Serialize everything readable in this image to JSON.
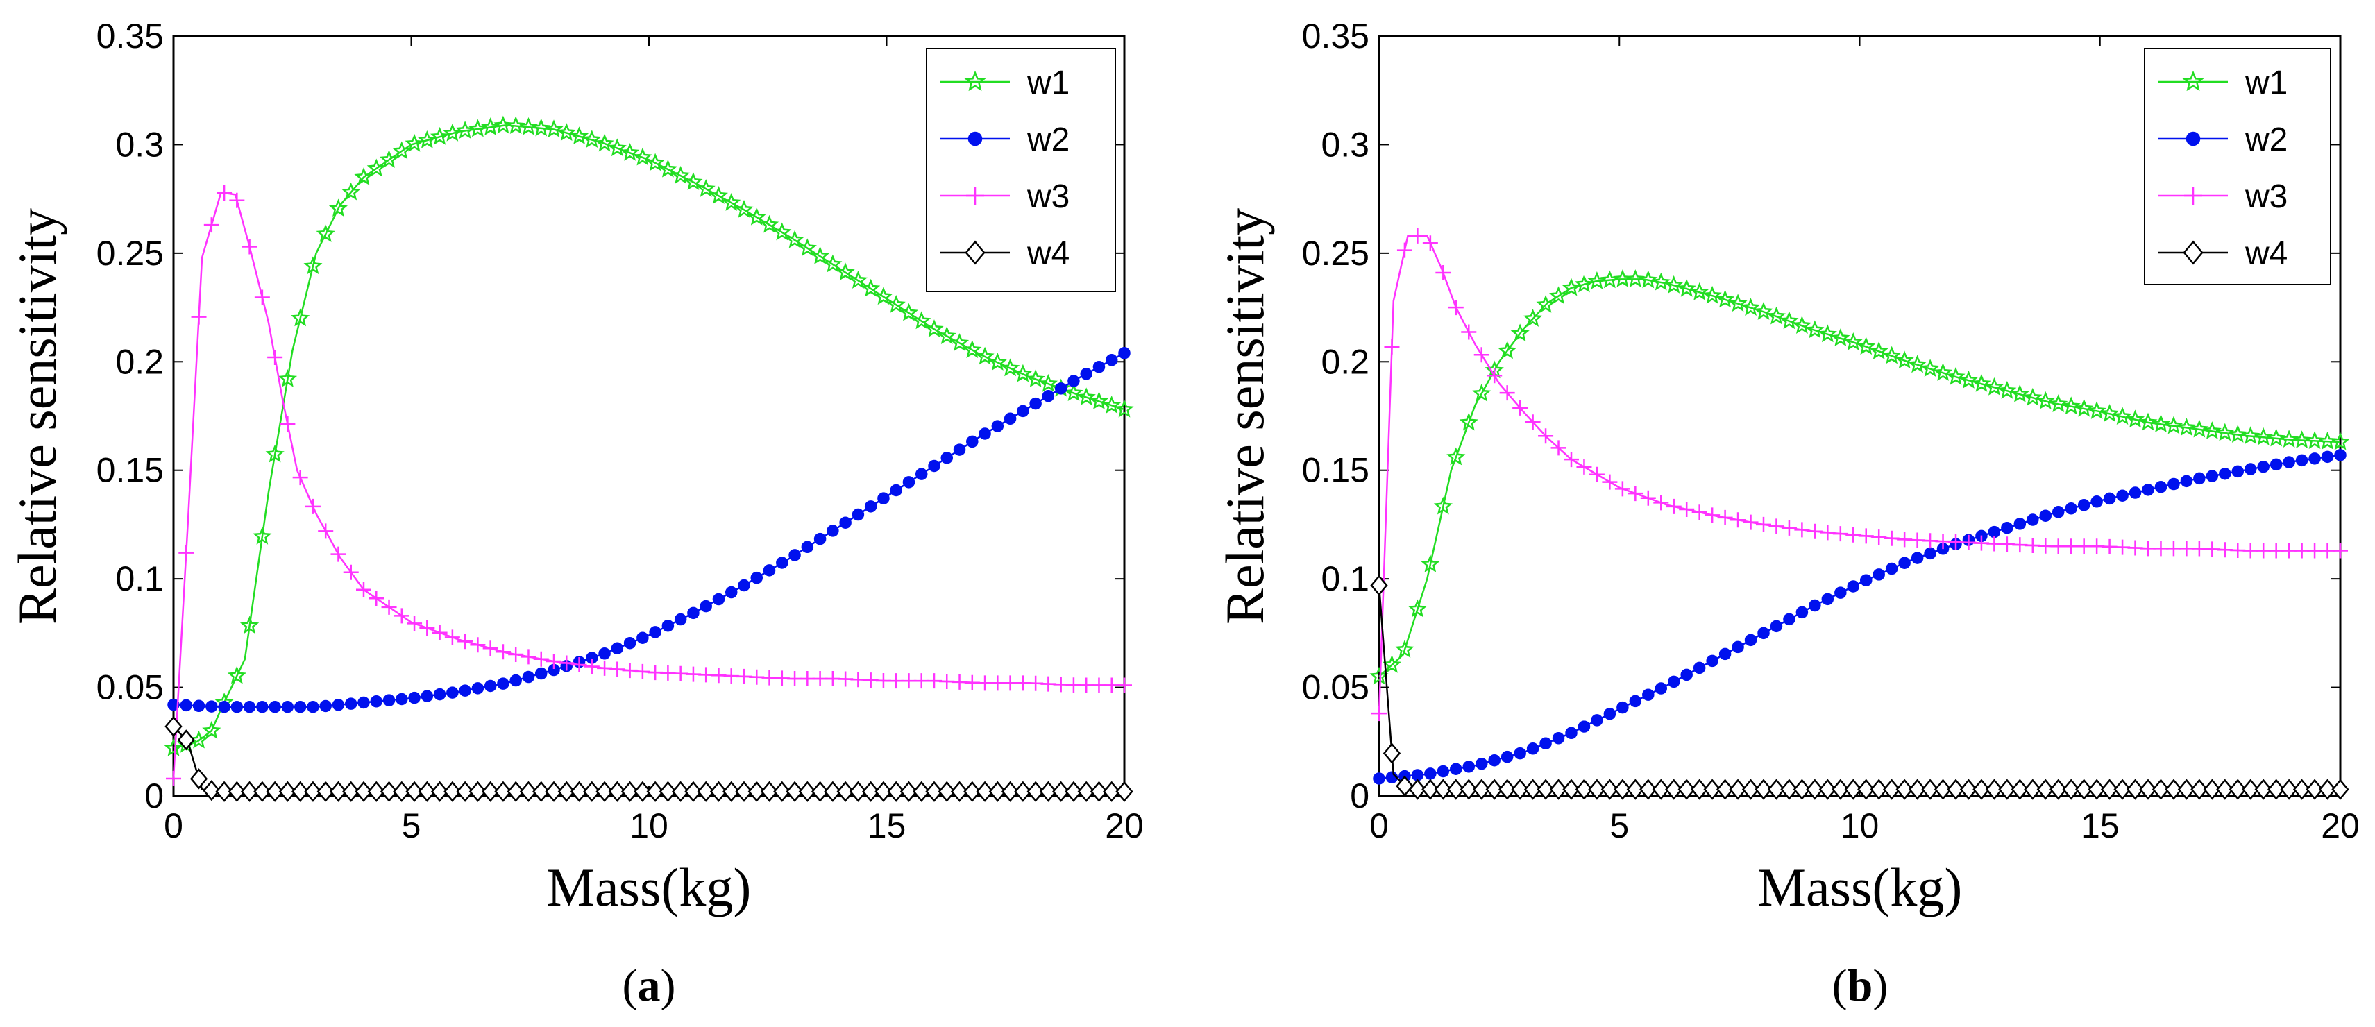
{
  "chart_data": [
    {
      "type": "line",
      "caption": "a",
      "xlabel": "Mass(kg)",
      "ylabel": "Relative sensitivity",
      "xlim": [
        0,
        20
      ],
      "ylim": [
        0,
        0.35
      ],
      "xticks": [
        "0",
        "5",
        "10",
        "15",
        "20"
      ],
      "yticks": [
        "0",
        "0.05",
        "0.1",
        "0.15",
        "0.2",
        "0.25",
        "0.3",
        "0.35"
      ],
      "legend_position": "top-right",
      "series": [
        {
          "name": "w1",
          "color": "#22dd22",
          "marker": "star",
          "x": [
            0,
            0.5,
            0.8,
            1,
            1.5,
            2,
            2.5,
            3,
            3.5,
            4,
            5,
            6,
            7,
            8,
            9,
            10,
            11,
            12,
            13,
            14,
            15,
            16,
            17,
            18,
            19,
            20
          ],
          "y": [
            0.022,
            0.025,
            0.03,
            0.04,
            0.063,
            0.14,
            0.205,
            0.25,
            0.272,
            0.285,
            0.3,
            0.306,
            0.309,
            0.307,
            0.301,
            0.293,
            0.282,
            0.27,
            0.257,
            0.243,
            0.229,
            0.215,
            0.203,
            0.193,
            0.185,
            0.178
          ]
        },
        {
          "name": "w2",
          "color": "#0011ee",
          "marker": "dot",
          "x": [
            0,
            1,
            2,
            3,
            4,
            5,
            6,
            7,
            8,
            9,
            10,
            11,
            12,
            13,
            14,
            15,
            16,
            17,
            18,
            19,
            20
          ],
          "y": [
            0.042,
            0.041,
            0.041,
            0.041,
            0.043,
            0.045,
            0.048,
            0.052,
            0.058,
            0.065,
            0.074,
            0.085,
            0.097,
            0.11,
            0.124,
            0.138,
            0.152,
            0.166,
            0.179,
            0.192,
            0.204
          ]
        },
        {
          "name": "w3",
          "color": "#ff33ff",
          "marker": "plus",
          "x": [
            0,
            0.3,
            0.6,
            1,
            1.3,
            1.6,
            2,
            2.3,
            2.6,
            3,
            3.5,
            4,
            5,
            6,
            7,
            8,
            9,
            10,
            11,
            12,
            13,
            14,
            15,
            16,
            17,
            18,
            19,
            20
          ],
          "y": [
            0.008,
            0.125,
            0.248,
            0.278,
            0.277,
            0.253,
            0.218,
            0.182,
            0.15,
            0.13,
            0.11,
            0.095,
            0.08,
            0.072,
            0.066,
            0.062,
            0.059,
            0.057,
            0.056,
            0.055,
            0.054,
            0.054,
            0.053,
            0.053,
            0.052,
            0.052,
            0.051,
            0.051
          ]
        },
        {
          "name": "w4",
          "color": "#000000",
          "marker": "diamond",
          "x": [
            0,
            0.3,
            0.6,
            1,
            2,
            3,
            4,
            5,
            6,
            7,
            8,
            9,
            10,
            11,
            12,
            13,
            14,
            15,
            16,
            17,
            18,
            19,
            20
          ],
          "y": [
            0.032,
            0.025,
            0.003,
            0.002,
            0.002,
            0.002,
            0.002,
            0.002,
            0.002,
            0.002,
            0.002,
            0.002,
            0.002,
            0.002,
            0.002,
            0.002,
            0.002,
            0.002,
            0.002,
            0.002,
            0.002,
            0.002,
            0.002
          ]
        }
      ]
    },
    {
      "type": "line",
      "caption": "b",
      "xlabel": "Mass(kg)",
      "ylabel": "Relative sensitivity",
      "xlim": [
        0,
        20
      ],
      "ylim": [
        0,
        0.35
      ],
      "xticks": [
        "0",
        "5",
        "10",
        "15",
        "20"
      ],
      "yticks": [
        "0",
        "0.05",
        "0.1",
        "0.15",
        "0.2",
        "0.25",
        "0.3",
        "0.35"
      ],
      "legend_position": "top-right",
      "series": [
        {
          "name": "w1",
          "color": "#22dd22",
          "marker": "star",
          "x": [
            0,
            0.5,
            1,
            1.5,
            2,
            2.5,
            3,
            3.5,
            4,
            4.5,
            5,
            5.5,
            6,
            7,
            8,
            9,
            10,
            11,
            12,
            13,
            14,
            15,
            16,
            17,
            18,
            19,
            20
          ],
          "y": [
            0.055,
            0.065,
            0.1,
            0.15,
            0.18,
            0.2,
            0.215,
            0.227,
            0.234,
            0.237,
            0.238,
            0.238,
            0.236,
            0.23,
            0.223,
            0.215,
            0.208,
            0.2,
            0.193,
            0.187,
            0.181,
            0.177,
            0.172,
            0.169,
            0.166,
            0.164,
            0.163
          ]
        },
        {
          "name": "w2",
          "color": "#0011ee",
          "marker": "dot",
          "x": [
            0,
            1,
            2,
            3,
            4,
            5,
            6,
            7,
            8,
            9,
            10,
            11,
            12,
            13,
            14,
            15,
            16,
            17,
            18,
            19,
            20
          ],
          "y": [
            0.008,
            0.01,
            0.014,
            0.02,
            0.029,
            0.04,
            0.051,
            0.063,
            0.075,
            0.087,
            0.098,
            0.108,
            0.116,
            0.123,
            0.13,
            0.136,
            0.141,
            0.146,
            0.15,
            0.154,
            0.157
          ]
        },
        {
          "name": "w3",
          "color": "#ff33ff",
          "marker": "plus",
          "x": [
            0,
            0.3,
            0.6,
            1,
            1.3,
            1.6,
            2,
            2.5,
            3,
            3.5,
            4,
            5,
            6,
            7,
            8,
            9,
            10,
            11,
            12,
            13,
            14,
            15,
            16,
            17,
            18,
            19,
            20
          ],
          "y": [
            0.038,
            0.228,
            0.258,
            0.258,
            0.243,
            0.225,
            0.208,
            0.19,
            0.177,
            0.165,
            0.155,
            0.142,
            0.134,
            0.129,
            0.125,
            0.122,
            0.12,
            0.118,
            0.117,
            0.116,
            0.115,
            0.115,
            0.114,
            0.114,
            0.113,
            0.113,
            0.113
          ]
        },
        {
          "name": "w4",
          "color": "#000000",
          "marker": "diamond",
          "x": [
            0,
            0.3,
            0.6,
            1,
            2,
            3,
            4,
            5,
            6,
            7,
            8,
            9,
            10,
            11,
            12,
            13,
            14,
            15,
            16,
            17,
            18,
            19,
            20
          ],
          "y": [
            0.097,
            0.01,
            0.003,
            0.003,
            0.003,
            0.003,
            0.003,
            0.003,
            0.003,
            0.003,
            0.003,
            0.003,
            0.003,
            0.003,
            0.003,
            0.003,
            0.003,
            0.003,
            0.003,
            0.003,
            0.003,
            0.003,
            0.003
          ]
        }
      ]
    }
  ]
}
